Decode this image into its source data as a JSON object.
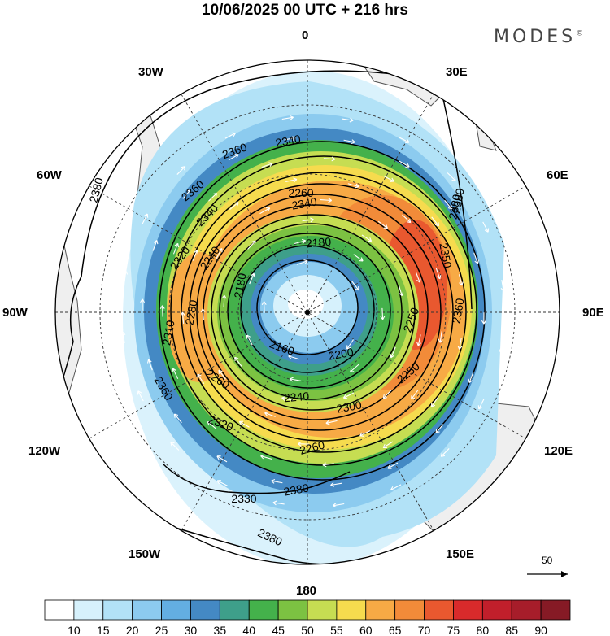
{
  "title": "10/06/2025  00 UTC  + 216 hrs",
  "brand": "MODES",
  "brand_mark": "©",
  "longitude_labels": {
    "top": "0",
    "e30": "30E",
    "e60": "60E",
    "e90": "90E",
    "e120": "120E",
    "e150": "150E",
    "bottom": "180",
    "w150": "150W",
    "w120": "120W",
    "w90": "90W",
    "w60": "60W",
    "w30": "30W"
  },
  "contour_labels": [
    "2380",
    "2360",
    "2340",
    "2360",
    "2340",
    "2320",
    "2260",
    "2240",
    "2180",
    "2180",
    "2160",
    "2200",
    "2240",
    "2260",
    "2280",
    "2310",
    "2350",
    "2360",
    "2340",
    "2380",
    "2250",
    "2300",
    "2320",
    "2260",
    "2330",
    "2380",
    "2380",
    "2380",
    "2250",
    "2360"
  ],
  "vector_reference": {
    "label": "50",
    "color": "#000000"
  },
  "colorbar": {
    "ticks": [
      "10",
      "15",
      "20",
      "25",
      "30",
      "35",
      "40",
      "45",
      "50",
      "55",
      "60",
      "65",
      "70",
      "75",
      "80",
      "85",
      "90"
    ],
    "colors": [
      "#ffffff",
      "#d6f1fc",
      "#b2e2f7",
      "#8ccbef",
      "#63aee2",
      "#4489c4",
      "#3e9f8a",
      "#44b14b",
      "#7cc242",
      "#c6dd52",
      "#f6db4e",
      "#f7aa45",
      "#f28b39",
      "#e9582f",
      "#d92a2b",
      "#c11f2b",
      "#a71d2a",
      "#861a25"
    ]
  },
  "map_colors": {
    "land": "#efefef",
    "coast": "#555555",
    "graticule": "#333333",
    "arrows": "#ffffff"
  }
}
